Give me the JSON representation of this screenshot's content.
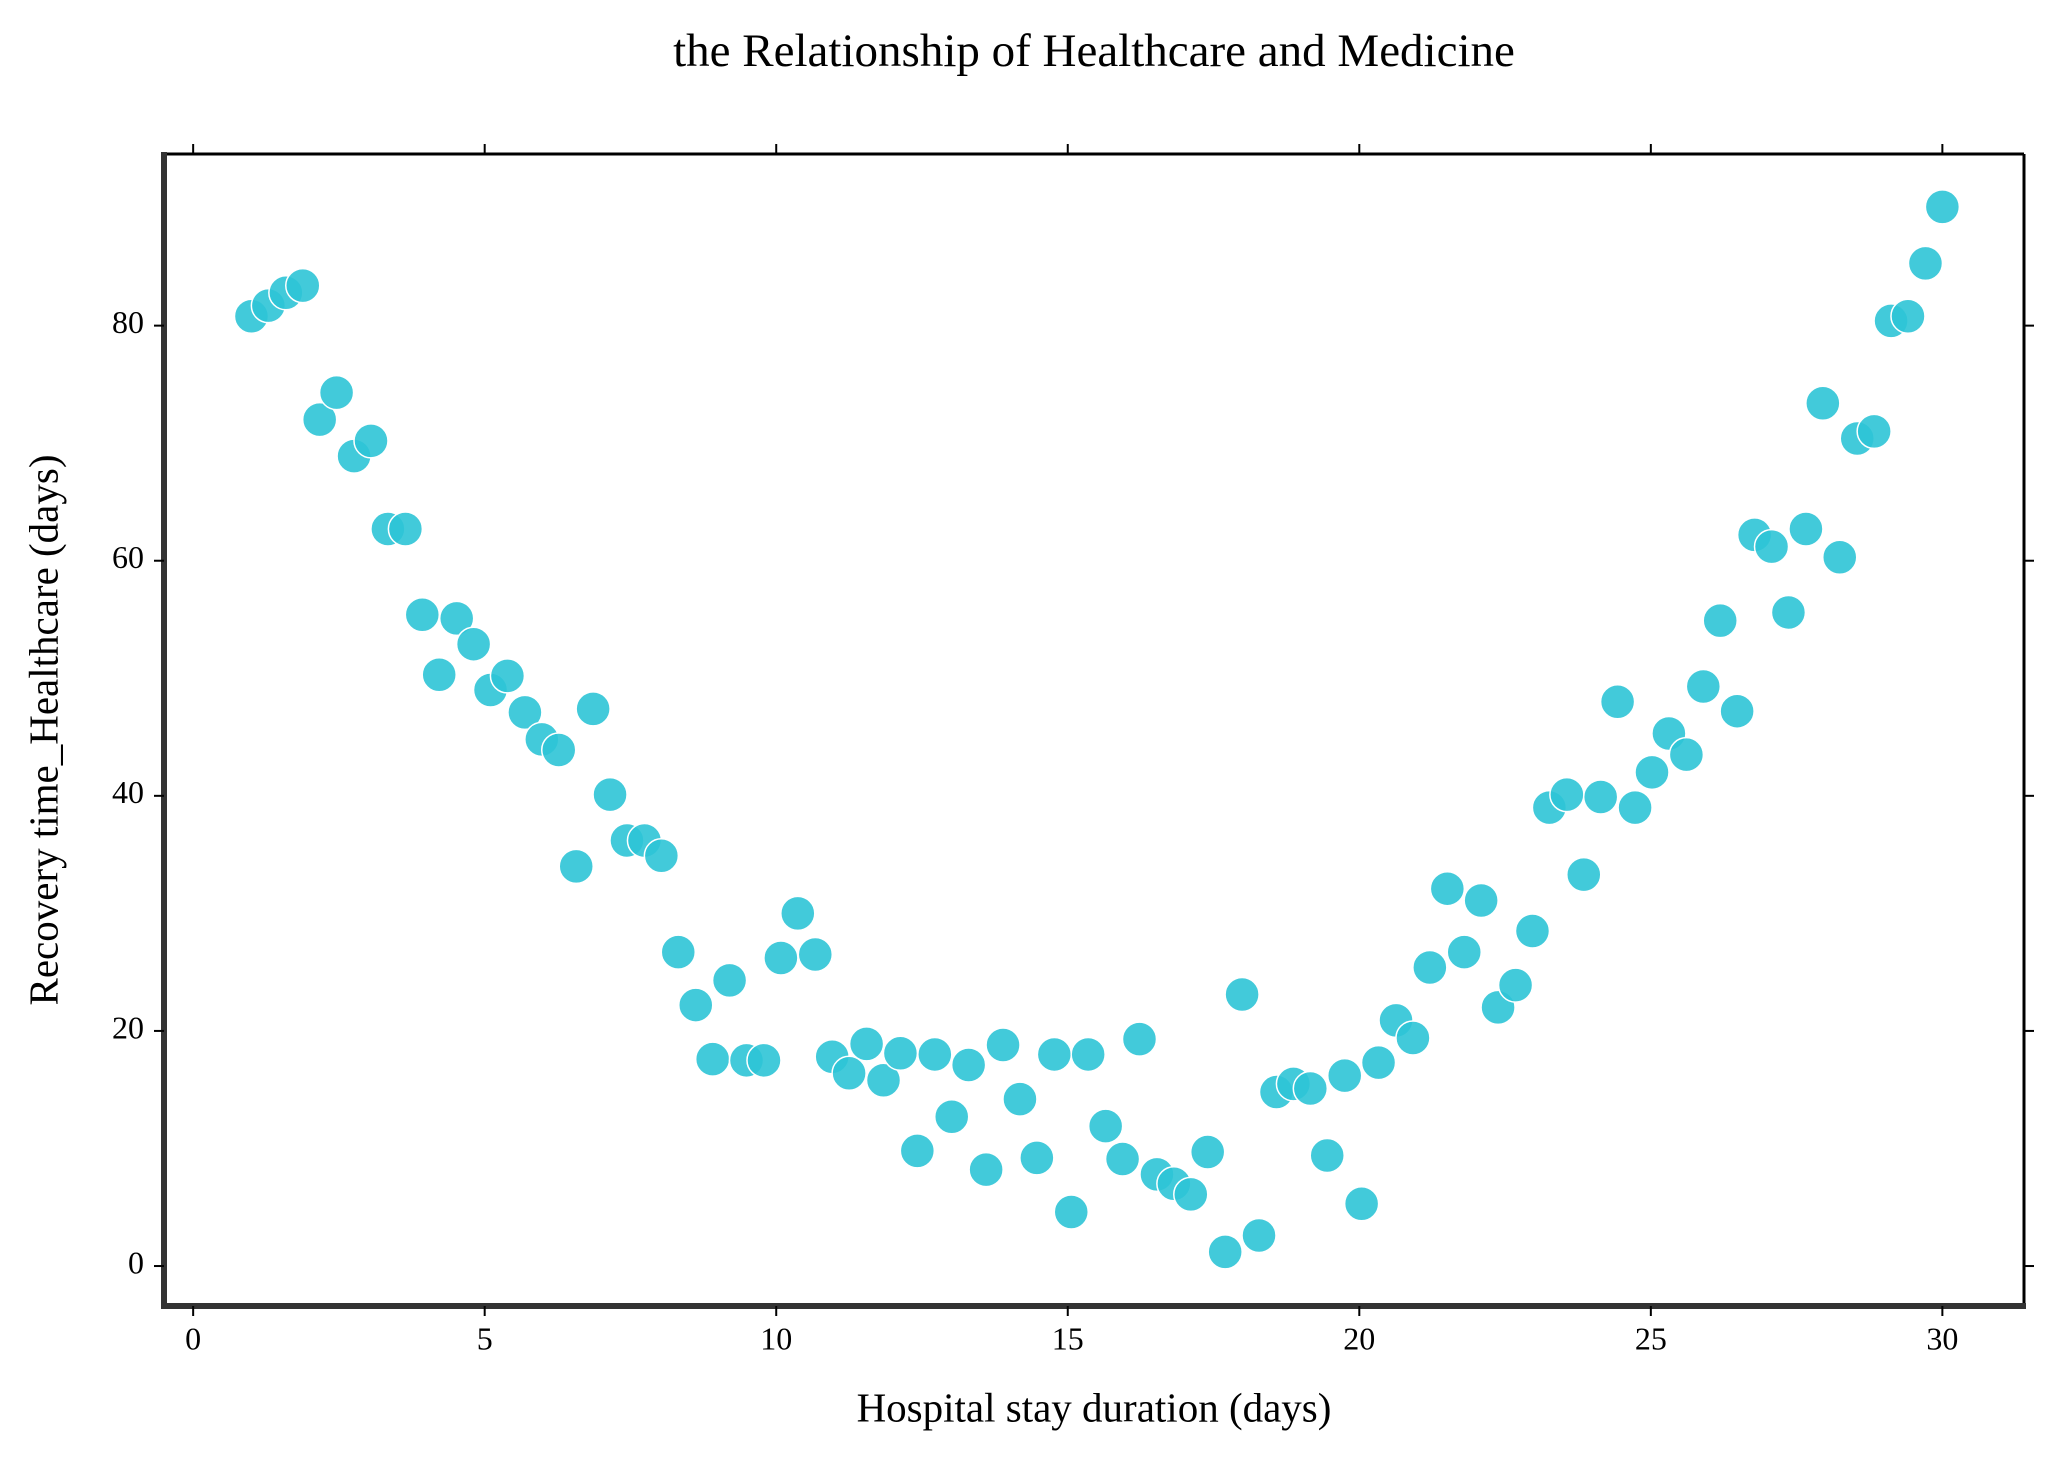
{
  "chart_data": {
    "type": "scatter",
    "title": "the Relationship of Healthcare and Medicine",
    "xlabel": "Hospital stay duration (days)",
    "ylabel": "Recovery time_Healthcare (days)",
    "color": "#2ec4d6",
    "grid": false,
    "xlim": [
      -0.5,
      31.4
    ],
    "ylim": [
      -3.4,
      94.6
    ],
    "xticks": [
      0,
      5,
      10,
      15,
      20,
      25,
      30
    ],
    "yticks": [
      0,
      20,
      40,
      60,
      80
    ],
    "x": [
      1.0,
      1.29,
      1.59,
      1.88,
      2.17,
      2.46,
      2.76,
      3.05,
      3.34,
      3.64,
      3.93,
      4.22,
      4.52,
      4.81,
      5.1,
      5.39,
      5.69,
      5.98,
      6.27,
      6.57,
      6.86,
      7.15,
      7.44,
      7.74,
      8.03,
      8.32,
      8.62,
      8.91,
      9.2,
      9.49,
      9.79,
      10.08,
      10.37,
      10.67,
      10.96,
      11.25,
      11.55,
      11.84,
      12.13,
      12.42,
      12.72,
      13.01,
      13.3,
      13.6,
      13.89,
      14.18,
      14.47,
      14.77,
      15.06,
      15.35,
      15.65,
      15.94,
      16.23,
      16.53,
      16.82,
      17.11,
      17.4,
      17.7,
      17.99,
      18.28,
      18.58,
      18.87,
      19.16,
      19.45,
      19.75,
      20.04,
      20.33,
      20.63,
      20.92,
      21.21,
      21.51,
      21.8,
      22.09,
      22.38,
      22.68,
      22.97,
      23.26,
      23.56,
      23.85,
      24.14,
      24.43,
      24.73,
      25.02,
      25.31,
      25.61,
      25.9,
      26.19,
      26.48,
      26.78,
      27.07,
      27.36,
      27.66,
      27.95,
      28.24,
      28.54,
      28.83,
      29.12,
      29.41,
      29.71,
      30.0
    ],
    "values": [
      80.8,
      81.7,
      82.8,
      83.4,
      72.0,
      74.3,
      68.9,
      70.2,
      62.7,
      62.7,
      55.4,
      50.3,
      55.1,
      52.9,
      49.0,
      50.2,
      47.1,
      44.8,
      43.9,
      34.0,
      47.4,
      40.1,
      36.2,
      36.2,
      34.9,
      26.7,
      22.2,
      17.6,
      24.3,
      17.5,
      17.5,
      26.2,
      30.0,
      26.5,
      17.8,
      16.4,
      18.9,
      15.8,
      18.1,
      9.8,
      18.0,
      12.7,
      17.1,
      8.2,
      18.8,
      14.2,
      9.2,
      18.0,
      4.6,
      18.0,
      11.9,
      9.1,
      19.3,
      7.8,
      7.0,
      6.1,
      9.7,
      1.2,
      23.1,
      2.6,
      14.8,
      15.5,
      15.1,
      9.4,
      16.2,
      5.3,
      17.3,
      20.9,
      19.4,
      25.4,
      32.1,
      26.7,
      31.1,
      22.0,
      23.9,
      28.5,
      39.0,
      40.1,
      33.3,
      39.9,
      48.0,
      39.0,
      42.0,
      45.3,
      43.5,
      49.3,
      54.9,
      47.2,
      62.2,
      61.2,
      55.6,
      62.7,
      73.4,
      60.3,
      70.4,
      71.0,
      80.4,
      80.8,
      85.3,
      90.1
    ]
  }
}
